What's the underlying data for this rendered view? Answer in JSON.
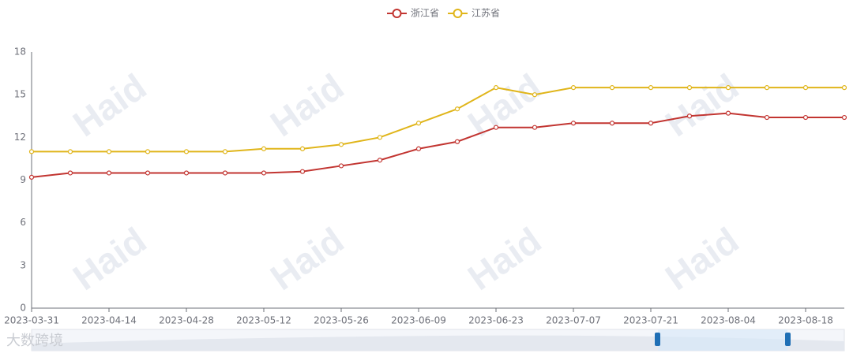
{
  "chart_data": {
    "type": "line",
    "watermark": "Haid",
    "brand": "大数跨境",
    "categories": [
      "2023-03-31",
      null,
      "2023-04-14",
      null,
      "2023-04-28",
      null,
      "2023-05-12",
      null,
      "2023-05-26",
      null,
      "2023-06-09",
      null,
      "2023-06-23",
      null,
      "2023-07-07",
      null,
      "2023-07-21",
      null,
      "2023-08-04",
      null,
      "2023-08-18",
      null
    ],
    "series": [
      {
        "name": "浙江省",
        "color": "#c23531",
        "values": [
          9.2,
          9.5,
          9.5,
          9.5,
          9.5,
          9.5,
          9.5,
          9.6,
          10.0,
          10.4,
          11.2,
          11.7,
          12.7,
          12.7,
          13.0,
          13.0,
          13.0,
          13.5,
          13.7,
          13.4,
          13.4,
          13.4
        ]
      },
      {
        "name": "江苏省",
        "color": "#e0b51a",
        "values": [
          11.0,
          11.0,
          11.0,
          11.0,
          11.0,
          11.0,
          11.2,
          11.2,
          11.5,
          12.0,
          13.0,
          14.0,
          15.5,
          15.0,
          15.5,
          15.5,
          15.5,
          15.5,
          15.5,
          15.5,
          15.5,
          15.5
        ]
      }
    ],
    "ylim": [
      0,
      18
    ],
    "yticks": [
      0,
      3,
      6,
      9,
      12,
      15,
      18
    ],
    "grid": false
  }
}
